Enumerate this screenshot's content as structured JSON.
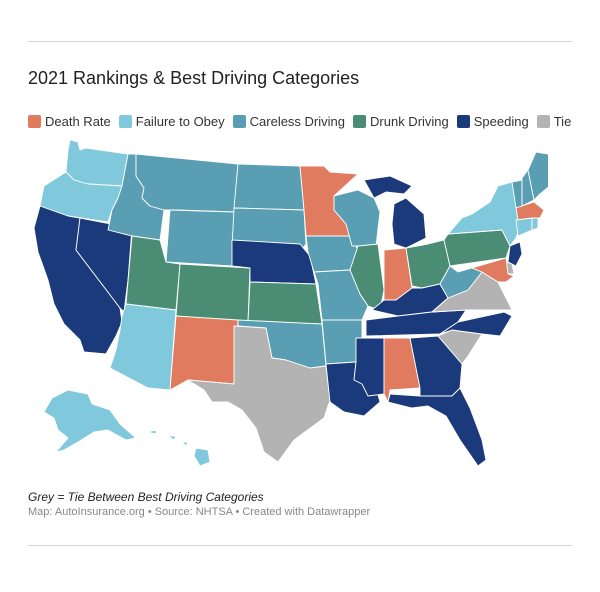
{
  "title": "2021 Rankings & Best Driving Categories",
  "legend": [
    {
      "label": "Death Rate",
      "color": "#e07b5f"
    },
    {
      "label": "Failure to Obey",
      "color": "#80c8db"
    },
    {
      "label": "Careless Driving",
      "color": "#5a9eb3"
    },
    {
      "label": "Drunk Driving",
      "color": "#4a8d74"
    },
    {
      "label": "Speeding",
      "color": "#1a3a7c"
    },
    {
      "label": "Tie",
      "color": "#b3b3b3"
    }
  ],
  "colors": {
    "death": "#e07b5f",
    "failure": "#80c8db",
    "careless": "#5a9eb3",
    "drunk": "#4a8d74",
    "speeding": "#1a3a7c",
    "tie": "#b3b3b3"
  },
  "states": {
    "WA": "failure",
    "OR": "failure",
    "CA": "speeding",
    "NV": "speeding",
    "ID": "careless",
    "MT": "careless",
    "WY": "careless",
    "UT": "drunk",
    "AZ": "failure",
    "CO": "drunk",
    "NM": "death",
    "ND": "careless",
    "SD": "careless",
    "NE": "speeding",
    "KS": "drunk",
    "OK": "careless",
    "TX": "tie",
    "MN": "death",
    "IA": "careless",
    "MO": "careless",
    "AR": "careless",
    "LA": "speeding",
    "WI": "careless",
    "IL": "drunk",
    "MI": "speeding",
    "IN": "death",
    "OH": "drunk",
    "KY": "speeding",
    "TN": "speeding",
    "MS": "speeding",
    "AL": "death",
    "GA": "speeding",
    "FL": "speeding",
    "SC": "tie",
    "NC": "speeding",
    "VA": "tie",
    "WV": "careless",
    "PA": "drunk",
    "NY": "failure",
    "VT": "careless",
    "NH": "careless",
    "ME": "careless",
    "MA": "death",
    "CT": "failure",
    "RI": "failure",
    "NJ": "speeding",
    "DE": "tie",
    "MD": "death",
    "AK": "failure",
    "HI": "failure"
  },
  "note": "Grey = Tie Between Best Driving Categories",
  "credit": "Map: AutoInsurance.org • Source: NHTSA • Created with Datawrapper"
}
